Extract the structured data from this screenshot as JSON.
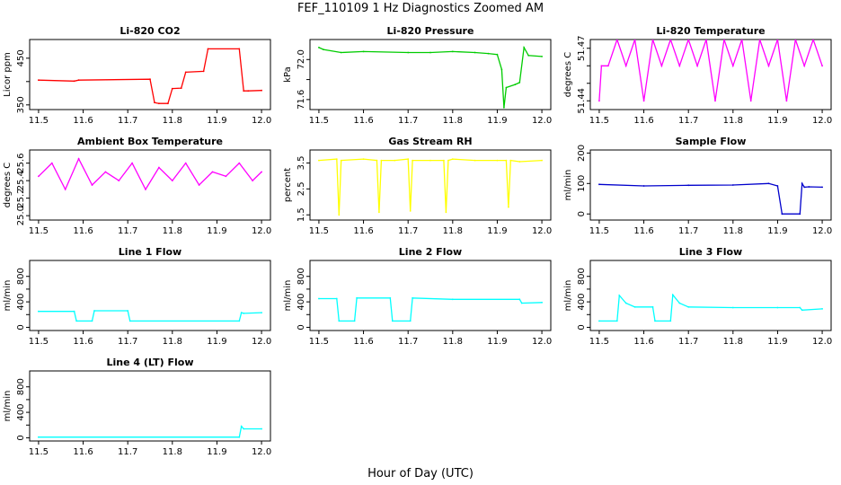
{
  "page": {
    "title": "FEF_110109  1 Hz Diagnostics Zoomed AM",
    "xlabel": "Hour of Day (UTC)"
  },
  "chart_data": [
    {
      "id": "co2",
      "type": "line",
      "title": "Li-820 CO2",
      "ylabel": "Licor ppm",
      "color": "#ff0000",
      "xlim": [
        11.48,
        12.02
      ],
      "ylim": [
        340,
        490
      ],
      "xticks": [
        11.5,
        11.6,
        11.7,
        11.8,
        11.9,
        12.0
      ],
      "xtick_labels": [
        "11.5",
        "11.6",
        "11.7",
        "11.8",
        "11.9",
        "12.0"
      ],
      "yticks": [
        350,
        400,
        450
      ],
      "ytick_labels": [
        "350",
        "",
        "450"
      ],
      "x": [
        11.5,
        11.58,
        11.59,
        11.75,
        11.76,
        11.77,
        11.79,
        11.8,
        11.82,
        11.83,
        11.87,
        11.88,
        11.95,
        11.96,
        11.97,
        12.0
      ],
      "y": [
        403,
        401,
        403,
        405,
        355,
        353,
        353,
        385,
        386,
        420,
        422,
        470,
        470,
        380,
        380,
        381
      ]
    },
    {
      "id": "pressure",
      "type": "line",
      "title": "Li-820 Pressure",
      "ylabel": "kPa",
      "color": "#00cc00",
      "xlim": [
        11.48,
        12.02
      ],
      "ylim": [
        71.5,
        72.2
      ],
      "xticks": [
        11.5,
        11.6,
        11.7,
        11.8,
        11.9,
        12.0
      ],
      "xtick_labels": [
        "11.5",
        "11.6",
        "11.7",
        "11.8",
        "11.9",
        "12.0"
      ],
      "yticks": [
        71.6,
        71.8,
        72.0
      ],
      "ytick_labels": [
        "71.6",
        "",
        "72.0"
      ],
      "x": [
        11.5,
        11.51,
        11.55,
        11.6,
        11.7,
        11.75,
        11.8,
        11.85,
        11.88,
        11.9,
        11.91,
        11.915,
        11.92,
        11.94,
        11.95,
        11.96,
        11.97,
        12.0
      ],
      "y": [
        72.12,
        72.1,
        72.07,
        72.08,
        72.07,
        72.07,
        72.08,
        72.07,
        72.06,
        72.05,
        71.9,
        71.52,
        71.72,
        71.75,
        71.77,
        72.12,
        72.04,
        72.03
      ]
    },
    {
      "id": "licor_temp",
      "type": "line",
      "title": "Li-820 Temperature",
      "ylabel": "degrees C",
      "color": "#ff00ff",
      "xlim": [
        11.48,
        12.02
      ],
      "ylim": [
        51.435,
        51.475
      ],
      "xticks": [
        11.5,
        11.6,
        11.7,
        11.8,
        11.9,
        12.0
      ],
      "xtick_labels": [
        "11.5",
        "11.6",
        "11.7",
        "11.8",
        "11.9",
        "12.0"
      ],
      "yticks": [
        51.44,
        51.45,
        51.46,
        51.47
      ],
      "ytick_labels": [
        "51.44",
        "",
        "",
        "51.47"
      ],
      "x": [
        11.5,
        11.505,
        11.52,
        11.54,
        11.56,
        11.58,
        11.6,
        11.62,
        11.64,
        11.66,
        11.68,
        11.7,
        11.72,
        11.74,
        11.76,
        11.78,
        11.8,
        11.82,
        11.84,
        11.86,
        11.88,
        11.9,
        11.92,
        11.94,
        11.96,
        11.98,
        12.0
      ],
      "y": [
        51.44,
        51.46,
        51.46,
        51.475,
        51.46,
        51.475,
        51.44,
        51.475,
        51.46,
        51.475,
        51.46,
        51.475,
        51.46,
        51.475,
        51.44,
        51.475,
        51.46,
        51.475,
        51.44,
        51.475,
        51.46,
        51.475,
        51.44,
        51.475,
        51.46,
        51.475,
        51.46
      ]
    },
    {
      "id": "ambient_temp",
      "type": "line",
      "title": "Ambient Box Temperature",
      "ylabel": "degrees C",
      "color": "#ff00ff",
      "xlim": [
        11.48,
        12.02
      ],
      "ylim": [
        24.95,
        25.75
      ],
      "xticks": [
        11.5,
        11.6,
        11.7,
        11.8,
        11.9,
        12.0
      ],
      "xtick_labels": [
        "11.5",
        "11.6",
        "11.7",
        "11.8",
        "11.9",
        "12.0"
      ],
      "yticks": [
        25.0,
        25.2,
        25.4,
        25.6
      ],
      "ytick_labels": [
        "25.0",
        "25.2",
        "25.4",
        "25.6"
      ],
      "x": [
        11.5,
        11.53,
        11.56,
        11.59,
        11.62,
        11.65,
        11.68,
        11.71,
        11.74,
        11.77,
        11.8,
        11.83,
        11.86,
        11.89,
        11.92,
        11.95,
        11.98,
        12.0
      ],
      "y": [
        25.45,
        25.6,
        25.3,
        25.65,
        25.35,
        25.5,
        25.4,
        25.6,
        25.3,
        25.55,
        25.4,
        25.6,
        25.35,
        25.5,
        25.45,
        25.6,
        25.4,
        25.5
      ]
    },
    {
      "id": "rh",
      "type": "line",
      "title": "Gas Stream RH",
      "ylabel": "percent",
      "color": "#ffff00",
      "xlim": [
        11.48,
        12.02
      ],
      "ylim": [
        1.3,
        4.0
      ],
      "xticks": [
        11.5,
        11.6,
        11.7,
        11.8,
        11.9,
        12.0
      ],
      "xtick_labels": [
        "11.5",
        "11.6",
        "11.7",
        "11.8",
        "11.9",
        "12.0"
      ],
      "yticks": [
        1.5,
        2.5,
        3.5
      ],
      "ytick_labels": [
        "1.5",
        "2.5",
        "3.5"
      ],
      "x": [
        11.5,
        11.54,
        11.545,
        11.55,
        11.6,
        11.63,
        11.635,
        11.64,
        11.67,
        11.7,
        11.705,
        11.71,
        11.75,
        11.78,
        11.785,
        11.79,
        11.8,
        11.85,
        11.9,
        11.92,
        11.925,
        11.93,
        11.95,
        12.0
      ],
      "y": [
        3.6,
        3.65,
        1.5,
        3.6,
        3.65,
        3.6,
        1.6,
        3.6,
        3.6,
        3.65,
        1.65,
        3.6,
        3.6,
        3.6,
        1.6,
        3.6,
        3.65,
        3.6,
        3.6,
        3.6,
        1.8,
        3.6,
        3.55,
        3.6
      ]
    },
    {
      "id": "sample_flow",
      "type": "line",
      "title": "Sample Flow",
      "ylabel": "ml/min",
      "color": "#0000cc",
      "xlim": [
        11.48,
        12.02
      ],
      "ylim": [
        -20,
        210
      ],
      "xticks": [
        11.5,
        11.6,
        11.7,
        11.8,
        11.9,
        12.0
      ],
      "xtick_labels": [
        "11.5",
        "11.6",
        "11.7",
        "11.8",
        "11.9",
        "12.0"
      ],
      "yticks": [
        0,
        100,
        200
      ],
      "ytick_labels": [
        "0",
        "100",
        "200"
      ],
      "x": [
        11.5,
        11.6,
        11.7,
        11.8,
        11.88,
        11.9,
        11.91,
        11.95,
        11.955,
        11.96,
        11.97,
        12.0
      ],
      "y": [
        97,
        92,
        94,
        95,
        100,
        92,
        0,
        0,
        100,
        88,
        89,
        88
      ]
    },
    {
      "id": "line1",
      "type": "line",
      "title": "Line 1 Flow",
      "ylabel": "ml/min",
      "color": "#00ffff",
      "xlim": [
        11.48,
        12.02
      ],
      "ylim": [
        -50,
        1050
      ],
      "xticks": [
        11.5,
        11.6,
        11.7,
        11.8,
        11.9,
        12.0
      ],
      "xtick_labels": [
        "11.5",
        "11.6",
        "11.7",
        "11.8",
        "11.9",
        "12.0"
      ],
      "yticks": [
        0,
        200,
        400,
        600,
        800
      ],
      "ytick_labels": [
        "0",
        "",
        "400",
        "",
        "800"
      ],
      "x": [
        11.5,
        11.58,
        11.585,
        11.62,
        11.625,
        11.7,
        11.705,
        11.95,
        11.955,
        11.96,
        12.0
      ],
      "y": [
        250,
        250,
        100,
        100,
        260,
        260,
        100,
        100,
        230,
        220,
        230
      ]
    },
    {
      "id": "line2",
      "type": "line",
      "title": "Line 2 Flow",
      "ylabel": "ml/min",
      "color": "#00ffff",
      "xlim": [
        11.48,
        12.02
      ],
      "ylim": [
        -50,
        1050
      ],
      "xticks": [
        11.5,
        11.6,
        11.7,
        11.8,
        11.9,
        12.0
      ],
      "xtick_labels": [
        "11.5",
        "11.6",
        "11.7",
        "11.8",
        "11.9",
        "12.0"
      ],
      "yticks": [
        0,
        200,
        400,
        600,
        800
      ],
      "ytick_labels": [
        "0",
        "",
        "400",
        "",
        "800"
      ],
      "x": [
        11.5,
        11.54,
        11.545,
        11.58,
        11.585,
        11.66,
        11.665,
        11.705,
        11.71,
        11.8,
        11.95,
        11.955,
        12.0
      ],
      "y": [
        450,
        450,
        100,
        100,
        460,
        460,
        100,
        100,
        460,
        440,
        440,
        380,
        390
      ]
    },
    {
      "id": "line3",
      "type": "line",
      "title": "Line 3 Flow",
      "ylabel": "ml/min",
      "color": "#00ffff",
      "xlim": [
        11.48,
        12.02
      ],
      "ylim": [
        -50,
        1050
      ],
      "xticks": [
        11.5,
        11.6,
        11.7,
        11.8,
        11.9,
        12.0
      ],
      "xtick_labels": [
        "11.5",
        "11.6",
        "11.7",
        "11.8",
        "11.9",
        "12.0"
      ],
      "yticks": [
        0,
        200,
        400,
        600,
        800
      ],
      "ytick_labels": [
        "0",
        "",
        "400",
        "",
        "800"
      ],
      "x": [
        11.5,
        11.54,
        11.545,
        11.56,
        11.58,
        11.62,
        11.625,
        11.66,
        11.665,
        11.68,
        11.7,
        11.8,
        11.9,
        11.95,
        11.955,
        12.0
      ],
      "y": [
        100,
        100,
        500,
        380,
        320,
        320,
        100,
        100,
        510,
        380,
        320,
        310,
        310,
        310,
        270,
        290
      ]
    },
    {
      "id": "line4",
      "type": "line",
      "title": "Line 4 (LT) Flow",
      "ylabel": "ml/min",
      "color": "#00ffff",
      "xlim": [
        11.48,
        12.02
      ],
      "ylim": [
        -50,
        1050
      ],
      "xticks": [
        11.5,
        11.6,
        11.7,
        11.8,
        11.9,
        12.0
      ],
      "xtick_labels": [
        "11.5",
        "11.6",
        "11.7",
        "11.8",
        "11.9",
        "12.0"
      ],
      "yticks": [
        0,
        200,
        400,
        600,
        800
      ],
      "ytick_labels": [
        "0",
        "",
        "400",
        "",
        "800"
      ],
      "x": [
        11.5,
        11.95,
        11.955,
        11.96,
        12.0
      ],
      "y": [
        10,
        10,
        180,
        140,
        140
      ]
    }
  ]
}
